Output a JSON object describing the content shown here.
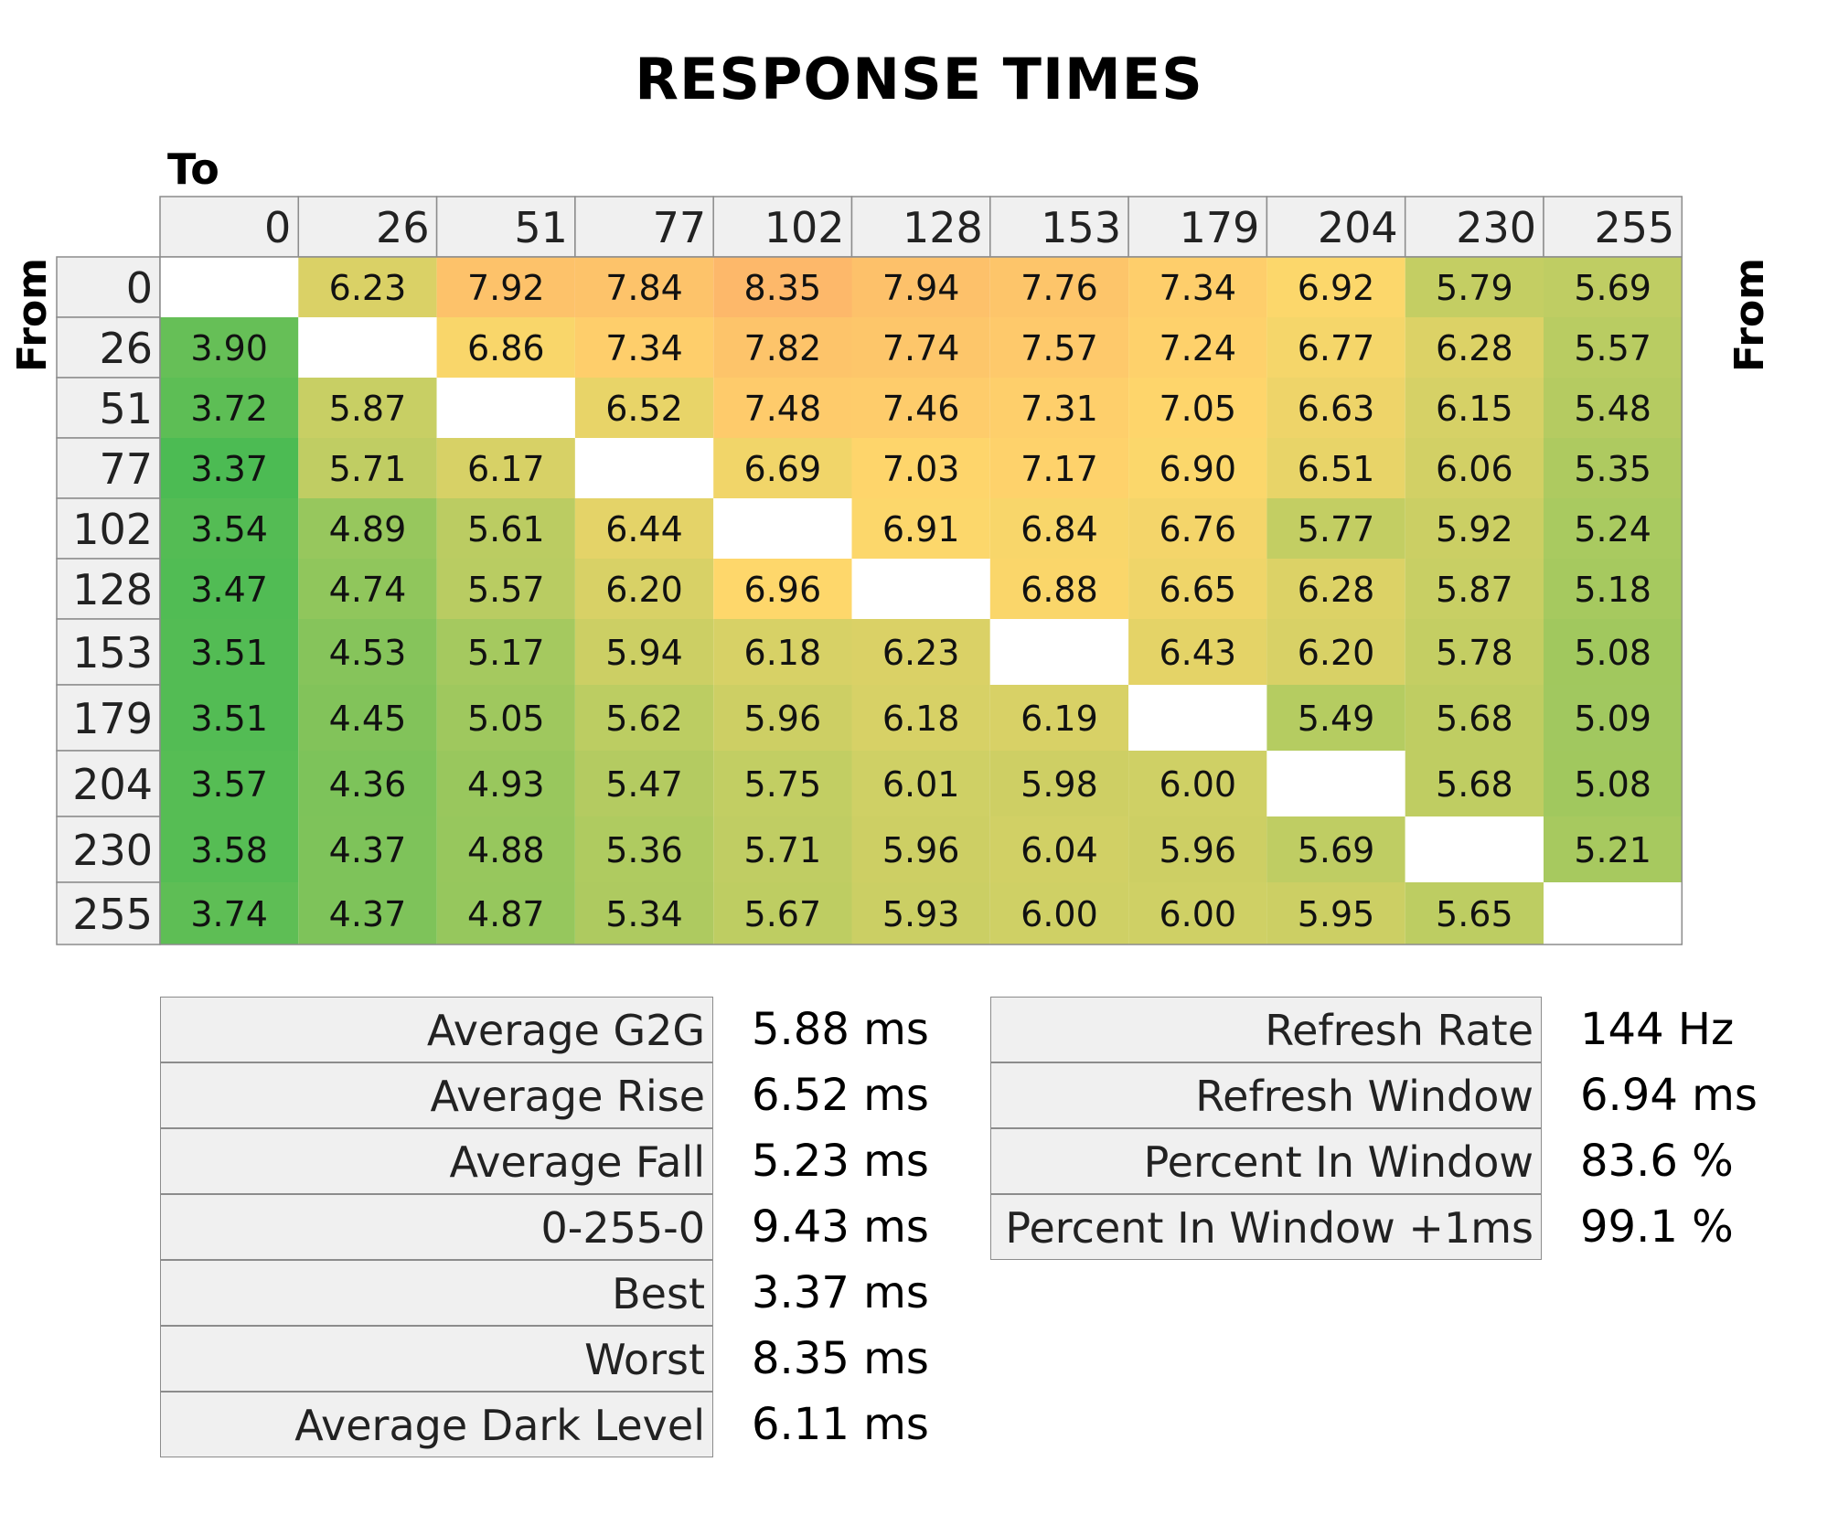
{
  "chart_data": {
    "type": "heatmap",
    "title": "RESPONSE TIMES",
    "xlabel": "To",
    "ylabel": "From",
    "ylabel_right": "From",
    "x": [
      "0",
      "26",
      "51",
      "77",
      "102",
      "128",
      "153",
      "179",
      "204",
      "230",
      "255"
    ],
    "y": [
      "0",
      "26",
      "51",
      "77",
      "102",
      "128",
      "153",
      "179",
      "204",
      "230",
      "255"
    ],
    "values": [
      [
        null,
        "6.23",
        "7.92",
        "7.84",
        "8.35",
        "7.94",
        "7.76",
        "7.34",
        "6.92",
        "5.79",
        "5.69"
      ],
      [
        "3.90",
        null,
        "6.86",
        "7.34",
        "7.82",
        "7.74",
        "7.57",
        "7.24",
        "6.77",
        "6.28",
        "5.57"
      ],
      [
        "3.72",
        "5.87",
        null,
        "6.52",
        "7.48",
        "7.46",
        "7.31",
        "7.05",
        "6.63",
        "6.15",
        "5.48"
      ],
      [
        "3.37",
        "5.71",
        "6.17",
        null,
        "6.69",
        "7.03",
        "7.17",
        "6.90",
        "6.51",
        "6.06",
        "5.35"
      ],
      [
        "3.54",
        "4.89",
        "5.61",
        "6.44",
        null,
        "6.91",
        "6.84",
        "6.76",
        "5.77",
        "5.92",
        "5.24"
      ],
      [
        "3.47",
        "4.74",
        "5.57",
        "6.20",
        "6.96",
        null,
        "6.88",
        "6.65",
        "6.28",
        "5.87",
        "5.18"
      ],
      [
        "3.51",
        "4.53",
        "5.17",
        "5.94",
        "6.18",
        "6.23",
        null,
        "6.43",
        "6.20",
        "5.78",
        "5.08"
      ],
      [
        "3.51",
        "4.45",
        "5.05",
        "5.62",
        "5.96",
        "6.18",
        "6.19",
        null,
        "5.49",
        "5.68",
        "5.09"
      ],
      [
        "3.57",
        "4.36",
        "4.93",
        "5.47",
        "5.75",
        "6.01",
        "5.98",
        "6.00",
        null,
        "5.68",
        "5.08"
      ],
      [
        "3.58",
        "4.37",
        "4.88",
        "5.36",
        "5.71",
        "5.96",
        "6.04",
        "5.96",
        "5.69",
        null,
        "5.21"
      ],
      [
        "3.74",
        "4.37",
        "4.87",
        "5.34",
        "5.67",
        "5.93",
        "6.00",
        "6.00",
        "5.95",
        "5.65",
        null
      ]
    ],
    "color_scale": {
      "min_value": 3.37,
      "max_value": 8.35,
      "low_color": "#4cbb53",
      "mid_color": "#fed76b",
      "high_color": "#fdb86a",
      "header_color": "#f0f0f0",
      "border_color": "#8c8c8c"
    },
    "stats_left": [
      {
        "label": "Average G2G",
        "value": "5.88 ms"
      },
      {
        "label": "Average Rise",
        "value": "6.52 ms"
      },
      {
        "label": "Average Fall",
        "value": "5.23 ms"
      },
      {
        "label": "0-255-0",
        "value": "9.43 ms"
      },
      {
        "label": "Best",
        "value": "3.37 ms"
      },
      {
        "label": "Worst",
        "value": "8.35 ms"
      },
      {
        "label": "Average Dark Level",
        "value": "6.11 ms"
      }
    ],
    "stats_right": [
      {
        "label": "Refresh Rate",
        "value": "144 Hz"
      },
      {
        "label": "Refresh Window",
        "value": "6.94 ms"
      },
      {
        "label": "Percent In Window",
        "value": "83.6 %"
      },
      {
        "label": "Percent In Window +1ms",
        "value": "99.1 %"
      }
    ]
  }
}
